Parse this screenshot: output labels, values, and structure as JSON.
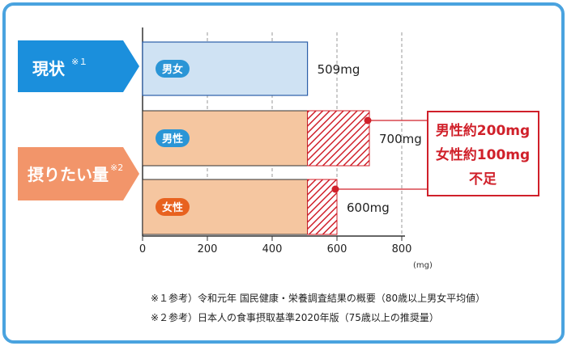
{
  "chart_data": {
    "type": "bar",
    "unit": "(mg)",
    "xlim": [
      0,
      800
    ],
    "x_ticks": [
      "0",
      "200",
      "400",
      "600",
      "800"
    ],
    "groups": [
      {
        "name": "現状",
        "note": "※１"
      },
      {
        "name": "摂りたい量",
        "note": "※2"
      }
    ],
    "bars": [
      {
        "label": "男女",
        "value": 509,
        "value_label": "509mg",
        "base": 509,
        "kind": "current"
      },
      {
        "label": "男性",
        "value": 700,
        "value_label": "700mg",
        "base": 509,
        "kind": "target"
      },
      {
        "label": "女性",
        "value": 600,
        "value_label": "600mg",
        "base": 509,
        "kind": "target"
      }
    ],
    "shortage": {
      "line1": "男性約200mg",
      "line2": "女性約100mg",
      "line3": "不足"
    }
  },
  "footnotes": [
    "※１参考）令和元年 国民健康・栄養調査結果の概要（80歳以上男女平均値）",
    "※２参考）日本人の食事摂取基準2020年版（75歳以上の推奨量）"
  ],
  "colors": {
    "current_fill": "#cfe2f3",
    "current_stroke": "#2a5ea8",
    "target_fill": "#f5c6a0",
    "hatch": "#d0202a",
    "male_pill": "#2a95d6",
    "female_pill": "#e8621f",
    "group1": "#1b8fdc",
    "group2": "#f2956a",
    "border": "#4aa3df"
  }
}
